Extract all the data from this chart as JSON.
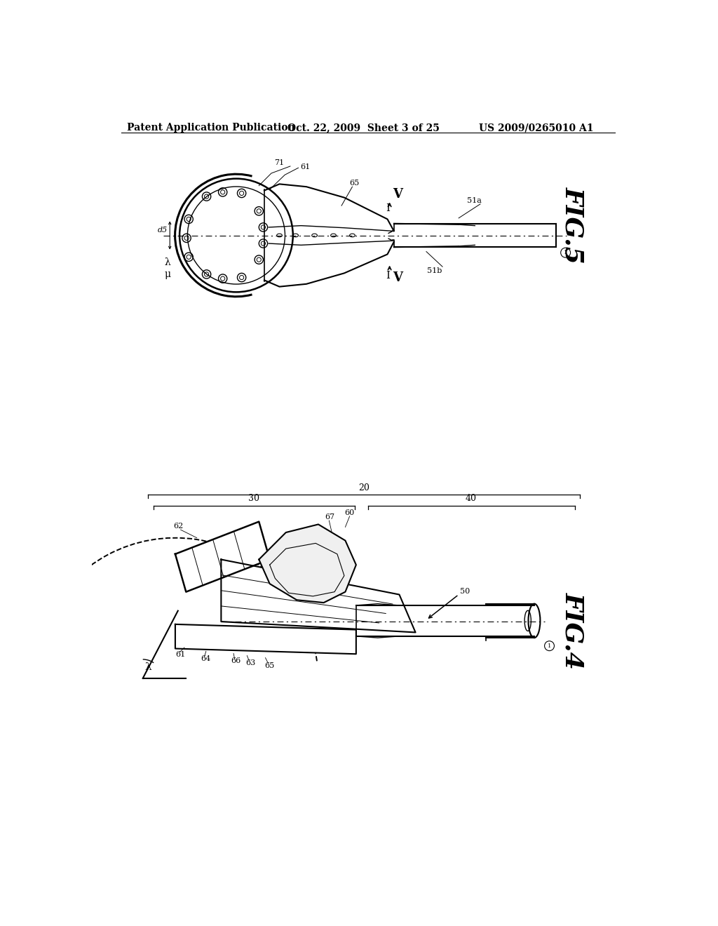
{
  "background_color": "#ffffff",
  "header_left": "Patent Application Publication",
  "header_center": "Oct. 22, 2009  Sheet 3 of 25",
  "header_right": "US 2009/0265010 A1",
  "fig5_label": "FIG.5",
  "fig4_label": "FIG.4",
  "text_color": "#000000",
  "line_color": "#000000",
  "header_fontsize": 10,
  "fig_label_fontsize": 26
}
